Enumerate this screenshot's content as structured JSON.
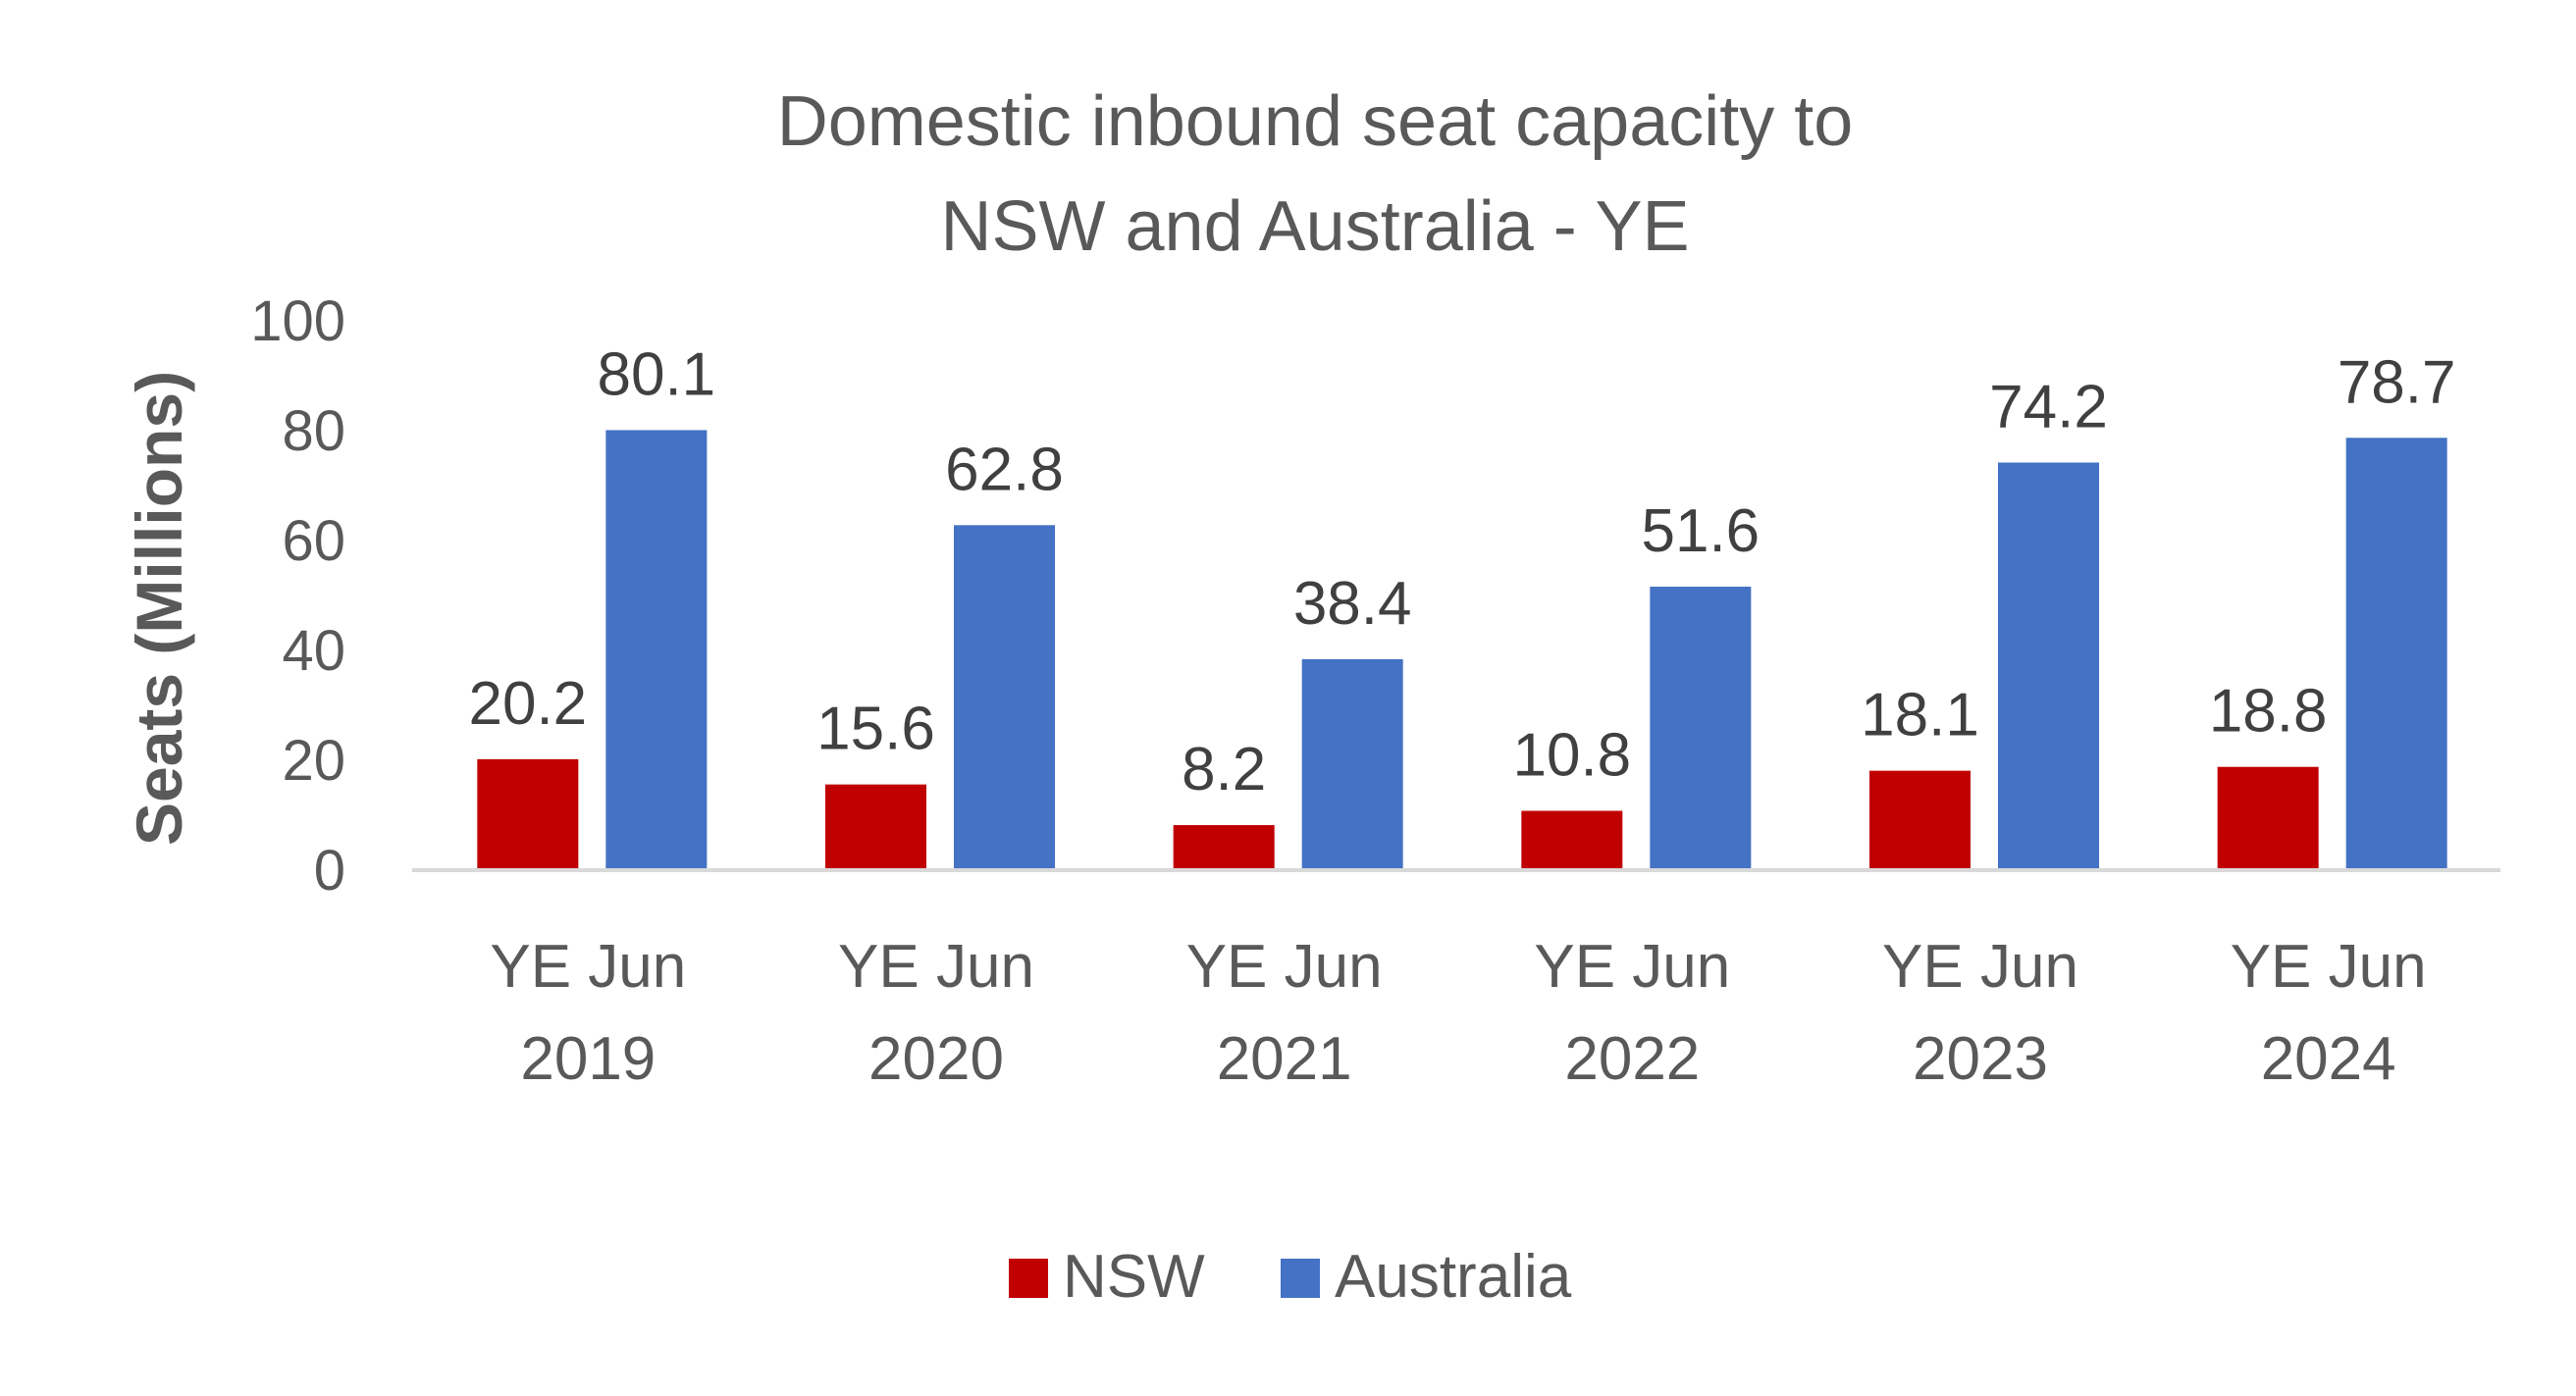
{
  "chart_data": {
    "type": "bar",
    "title_lines": [
      "Domestic inbound seat capacity to",
      "NSW and Australia - YE"
    ],
    "title": "Domestic inbound seat capacity to NSW and Australia - YE",
    "xlabel": "",
    "ylabel": "Seats (Millions)",
    "ylim": [
      0,
      100
    ],
    "yticks": [
      0,
      20,
      40,
      60,
      80,
      100
    ],
    "categories": [
      [
        "YE Jun",
        "2019"
      ],
      [
        "YE Jun",
        "2020"
      ],
      [
        "YE Jun",
        "2021"
      ],
      [
        "YE Jun",
        "2022"
      ],
      [
        "YE Jun",
        "2023"
      ],
      [
        "YE Jun",
        "2024"
      ]
    ],
    "series": [
      {
        "name": "NSW",
        "color": "#C00000",
        "values": [
          20.2,
          15.6,
          8.2,
          10.8,
          18.1,
          18.8
        ]
      },
      {
        "name": "Australia",
        "color": "#4472C4",
        "values": [
          80.1,
          62.8,
          38.4,
          51.6,
          74.2,
          78.7
        ]
      }
    ],
    "data_labels": true,
    "gridlines": false,
    "legend_position": "bottom"
  }
}
